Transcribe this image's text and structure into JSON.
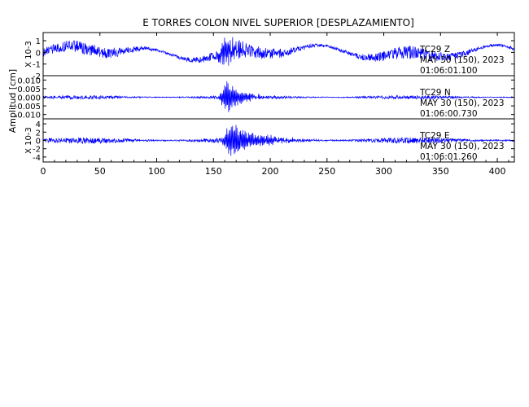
{
  "chart_data": {
    "type": "line",
    "title": "E TORRES COLON NIVEL SUPERIOR [DESPLAZAMIENTO]",
    "xlabel": "",
    "ylabel": "Amplitud [cm]",
    "xlim": [
      0,
      415
    ],
    "x_ticks": [
      0,
      50,
      100,
      150,
      200,
      250,
      300,
      350,
      400
    ],
    "line_color": "#0000ff",
    "grid": false,
    "channels": [
      {
        "name": "TC29 Z",
        "scale_label": "X 10-3",
        "ylim": [
          -2.0,
          1.7
        ],
        "y_ticks": [
          -2,
          -1,
          0,
          1
        ],
        "y_tick_labels": [
          "-2",
          "-1",
          "0",
          "1"
        ],
        "date_line": "MAY 30 (150), 2023",
        "time_line": "01:06:01.100",
        "peak_time": 160,
        "amplitude": 1.45,
        "noise": 0.55,
        "drift": 0.65
      },
      {
        "name": "TC29 N",
        "scale_label": "",
        "ylim": [
          -0.0125,
          0.0125
        ],
        "y_ticks": [
          -0.01,
          -0.005,
          0.0,
          0.005,
          0.01
        ],
        "y_tick_labels": [
          "-0.010",
          "-0.005",
          "0.000",
          "0.005",
          "0.010"
        ],
        "date_line": "MAY 30 (150), 2023",
        "time_line": "01:06:00.730",
        "peak_time": 162,
        "amplitude": 0.011,
        "noise": 0.0011,
        "drift": 0.0
      },
      {
        "name": "TC29 E",
        "scale_label": "X 10-3",
        "ylim": [
          -5.2,
          5.2
        ],
        "y_ticks": [
          -4,
          -2,
          0,
          2,
          4
        ],
        "y_tick_labels": [
          "-4",
          "-2",
          "0",
          "2",
          "4"
        ],
        "date_line": "MAY 30 (150), 2023",
        "time_line": "01:06:01.260",
        "peak_time": 165,
        "amplitude": 4.6,
        "noise": 0.75,
        "drift": 0.0
      }
    ]
  }
}
